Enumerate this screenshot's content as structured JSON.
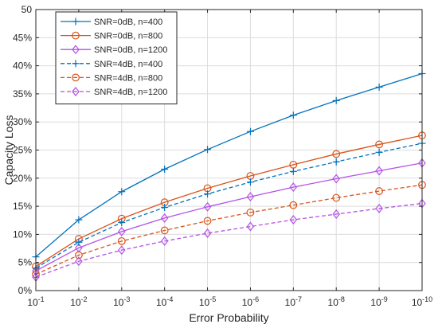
{
  "chart_data": {
    "type": "line",
    "xlabel": "Error Probability",
    "ylabel": "Capacity Loss",
    "x_scale": "log",
    "x_reversed": true,
    "x": [
      0.1,
      0.01,
      0.001,
      0.0001,
      1e-05,
      1e-06,
      1e-07,
      1e-08,
      1e-09,
      1e-10
    ],
    "x_ticks": [
      {
        "base": "10",
        "exp": "-1"
      },
      {
        "base": "10",
        "exp": "-2"
      },
      {
        "base": "10",
        "exp": "-3"
      },
      {
        "base": "10",
        "exp": "-4"
      },
      {
        "base": "10",
        "exp": "-5"
      },
      {
        "base": "10",
        "exp": "-6"
      },
      {
        "base": "10",
        "exp": "-7"
      },
      {
        "base": "10",
        "exp": "-8"
      },
      {
        "base": "10",
        "exp": "-9"
      },
      {
        "base": "10",
        "exp": "-10"
      }
    ],
    "ylim": [
      0,
      50
    ],
    "y_ticks": [
      0,
      5,
      10,
      15,
      20,
      25,
      30,
      35,
      40,
      45,
      50
    ],
    "y_tick_labels": [
      "0%",
      "5%",
      "10%",
      "15%",
      "20%",
      "25%",
      "30%",
      "35%",
      "40%",
      "45%",
      "50"
    ],
    "grid": true,
    "legend_position": "top-left",
    "series": [
      {
        "name": "SNR=0dB, n=400",
        "color": "#0072BD",
        "dash": "solid",
        "marker": "plus",
        "values": [
          6.0,
          12.6,
          17.6,
          21.6,
          25.1,
          28.3,
          31.2,
          33.8,
          36.2,
          38.6
        ]
      },
      {
        "name": "SNR=0dB, n=800",
        "color": "#D95319",
        "dash": "solid",
        "marker": "circle",
        "values": [
          4.3,
          9.2,
          12.8,
          15.7,
          18.2,
          20.4,
          22.4,
          24.3,
          26.0,
          27.6
        ]
      },
      {
        "name": "SNR=0dB, n=1200",
        "color": "#B452E6",
        "dash": "solid",
        "marker": "diamond",
        "values": [
          3.5,
          7.6,
          10.5,
          12.9,
          14.9,
          16.7,
          18.4,
          19.9,
          21.3,
          22.7
        ]
      },
      {
        "name": "SNR=4dB, n=400",
        "color": "#0072BD",
        "dash": "dashed",
        "marker": "plus",
        "values": [
          4.0,
          8.6,
          12.1,
          14.8,
          17.2,
          19.3,
          21.2,
          22.9,
          24.6,
          26.2
        ]
      },
      {
        "name": "SNR=4dB, n=800",
        "color": "#D95319",
        "dash": "dashed",
        "marker": "circle",
        "values": [
          2.9,
          6.3,
          8.8,
          10.7,
          12.4,
          13.9,
          15.2,
          16.5,
          17.7,
          18.8
        ]
      },
      {
        "name": "SNR=4dB, n=1200",
        "color": "#B452E6",
        "dash": "dashed",
        "marker": "diamond",
        "values": [
          2.4,
          5.2,
          7.2,
          8.8,
          10.2,
          11.4,
          12.6,
          13.6,
          14.6,
          15.5
        ]
      }
    ]
  }
}
